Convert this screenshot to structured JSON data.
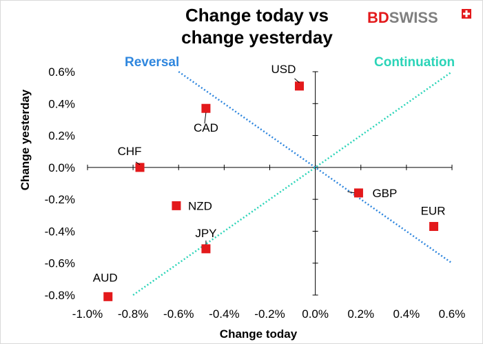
{
  "chart_data": {
    "type": "scatter",
    "title_lines": [
      "Change today vs",
      "change yesterday"
    ],
    "xlabel": "Change today",
    "ylabel": "Change yesterday",
    "xlim": [
      -1.0,
      0.6
    ],
    "ylim": [
      -0.8,
      0.6
    ],
    "x_ticks": [
      -1.0,
      -0.8,
      -0.6,
      -0.4,
      -0.2,
      0.0,
      0.2,
      0.4,
      0.6
    ],
    "x_tick_labels": [
      "-1.0%",
      "-0.8%",
      "-0.6%",
      "-0.4%",
      "-0.2%",
      "0.0%",
      "0.2%",
      "0.4%",
      "0.6%"
    ],
    "y_ticks": [
      0.6,
      0.4,
      0.2,
      0.0,
      -0.2,
      -0.4,
      -0.6,
      -0.8
    ],
    "y_tick_labels": [
      "0.6%",
      "0.4%",
      "0.2%",
      "0.0%",
      "-0.2%",
      "-0.4%",
      "-0.6%",
      "-0.8%"
    ],
    "points": [
      {
        "label": "USD",
        "x": -0.07,
        "y": 0.51
      },
      {
        "label": "CAD",
        "x": -0.48,
        "y": 0.37
      },
      {
        "label": "CHF",
        "x": -0.77,
        "y": 0.0
      },
      {
        "label": "NZD",
        "x": -0.61,
        "y": -0.24
      },
      {
        "label": "JPY",
        "x": -0.48,
        "y": -0.51
      },
      {
        "label": "AUD",
        "x": -0.91,
        "y": -0.81
      },
      {
        "label": "GBP",
        "x": 0.19,
        "y": -0.16
      },
      {
        "label": "EUR",
        "x": 0.52,
        "y": -0.37
      }
    ],
    "point_color": "#e3191b",
    "lines": [
      {
        "name": "Reversal",
        "from": [
          -0.6,
          0.6
        ],
        "to": [
          0.6,
          -0.6
        ],
        "color": "#2e86de"
      },
      {
        "name": "Continuation",
        "from": [
          -0.8,
          -0.8
        ],
        "to": [
          0.6,
          0.6
        ],
        "color": "#2bd4b8"
      }
    ],
    "annotations": [
      {
        "text": "Reversal",
        "color": "#2e86de"
      },
      {
        "text": "Continuation",
        "color": "#2bd4b8"
      }
    ],
    "grid": false,
    "legend": "none"
  },
  "logo": {
    "text_bd": "BD",
    "text_swiss": "SWISS",
    "bd_color": "#e3191b",
    "swiss_color": "#7f7f7f"
  }
}
